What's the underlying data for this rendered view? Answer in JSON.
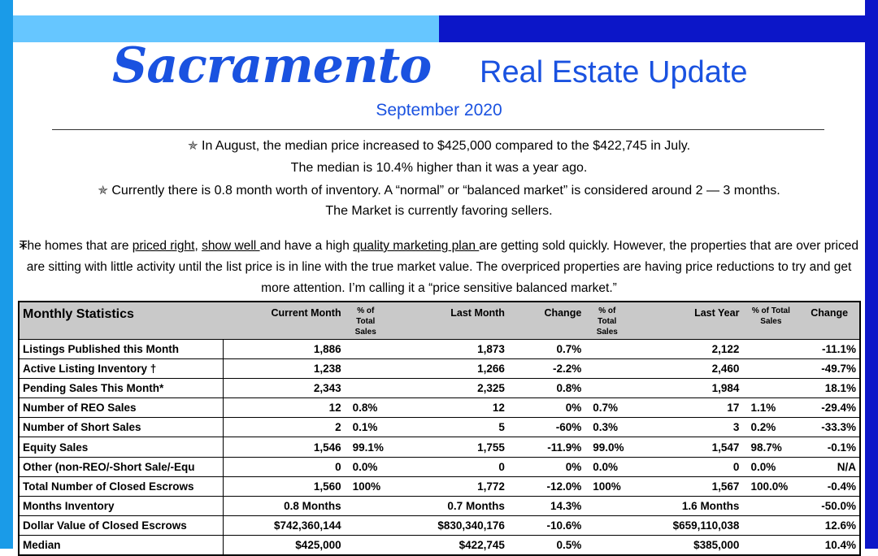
{
  "header": {
    "title_script": "Sacramento",
    "title_rest": "Real Estate Update",
    "date": "September 2020"
  },
  "highlights": {
    "line1": "In August, the median price increased to $425,000 compared to the $422,745 in July.",
    "line2": "The median is 10.4% higher than it was a year ago.",
    "line3": "Currently there is 0.8 month worth of inventory. A “normal” or “balanced market” is considered around 2 — 3 months.",
    "line4": "The Market is currently favoring sellers.",
    "star_icon": "star-icon"
  },
  "paragraph": {
    "bullet": "∗",
    "t1": "The homes that are ",
    "u1": "priced right",
    "t2": ", ",
    "u2": "show well ",
    "t3": "and have a high ",
    "u3": "quality marketing plan ",
    "t4": "are getting sold quickly.  However, the properties that are over priced are sitting with little activity until the list price is in line with the true market value.  The overpriced properties are having price reductions to try and get more attention. I’m calling it a “price sensitive balanced market.”"
  },
  "table": {
    "headers": {
      "title": "Monthly Statistics",
      "current": "Current Month",
      "pct1": "% of Total Sales",
      "last": "Last Month",
      "change1": "Change",
      "pct2": "% of Total Sales",
      "lastyear": "Last Year",
      "pct3": "% of  Total Sales",
      "change2": "Change"
    },
    "rows": [
      {
        "label": "Listings Published this Month",
        "cur": "1,886",
        "p1": "",
        "last": "1,873",
        "chg": "0.7%",
        "p2": "",
        "ly": "2,122",
        "p3": "",
        "chg2": "-11.1%"
      },
      {
        "label": "Active Listing Inventory †",
        "cur": "1,238",
        "p1": "",
        "last": "1,266",
        "chg": "-2.2%",
        "p2": "",
        "ly": "2,460",
        "p3": "",
        "chg2": "-49.7%"
      },
      {
        "label": "Pending Sales This Month*",
        "cur": "2,343",
        "p1": "",
        "last": "2,325",
        "chg": "0.8%",
        "p2": "",
        "ly": "1,984",
        "p3": "",
        "chg2": "18.1%"
      },
      {
        "label": "Number of REO Sales",
        "cur": "12",
        "p1": "0.8%",
        "last": "12",
        "chg": "0%",
        "p2": "0.7%",
        "ly": "17",
        "p3": "1.1%",
        "chg2": "-29.4%"
      },
      {
        "label": "Number of Short Sales",
        "cur": "2",
        "p1": "0.1%",
        "last": "5",
        "chg": "-60%",
        "p2": "0.3%",
        "ly": "3",
        "p3": "0.2%",
        "chg2": "-33.3%"
      },
      {
        "label": "Equity Sales",
        "cur": "1,546",
        "p1": "99.1%",
        "last": "1,755",
        "chg": "-11.9%",
        "p2": "99.0%",
        "ly": "1,547",
        "p3": "98.7%",
        "chg2": "-0.1%"
      },
      {
        "label": "Other (non-REO/-Short Sale/-Equ",
        "cur": "0",
        "p1": "0.0%",
        "last": "0",
        "chg": "0%",
        "p2": "0.0%",
        "ly": "0",
        "p3": "0.0%",
        "chg2": "N/A"
      },
      {
        "label": "Total Number of Closed Escrows",
        "cur": "1,560",
        "p1": "100%",
        "last": "1,772",
        "chg": "-12.0%",
        "p2": "100%",
        "ly": "1,567",
        "p3": "100.0%",
        "chg2": "-0.4%"
      },
      {
        "label": "Months Inventory",
        "cur": "0.8 Months",
        "p1": "",
        "last": "0.7 Months",
        "chg": "14.3%",
        "p2": "",
        "ly": "1.6 Months",
        "p3": "",
        "chg2": "-50.0%"
      },
      {
        "label": "Dollar Value of Closed Escrows",
        "cur": "$742,360,144",
        "p1": "",
        "last": "$830,340,176",
        "chg": "-10.6%",
        "p2": "",
        "ly": "$659,110,038",
        "p3": "",
        "chg2": "12.6%"
      },
      {
        "label": "Median",
        "cur": "$425,000",
        "p1": "",
        "last": "$422,745",
        "chg": "0.5%",
        "p2": "",
        "ly": "$385,000",
        "p3": "",
        "chg2": "10.4%"
      }
    ]
  },
  "colors": {
    "accent_blue": "#1a52e0",
    "bar_light": "#66c6ff",
    "bar_dark": "#0c16c8",
    "table_header_bg": "#c9c9c9"
  }
}
